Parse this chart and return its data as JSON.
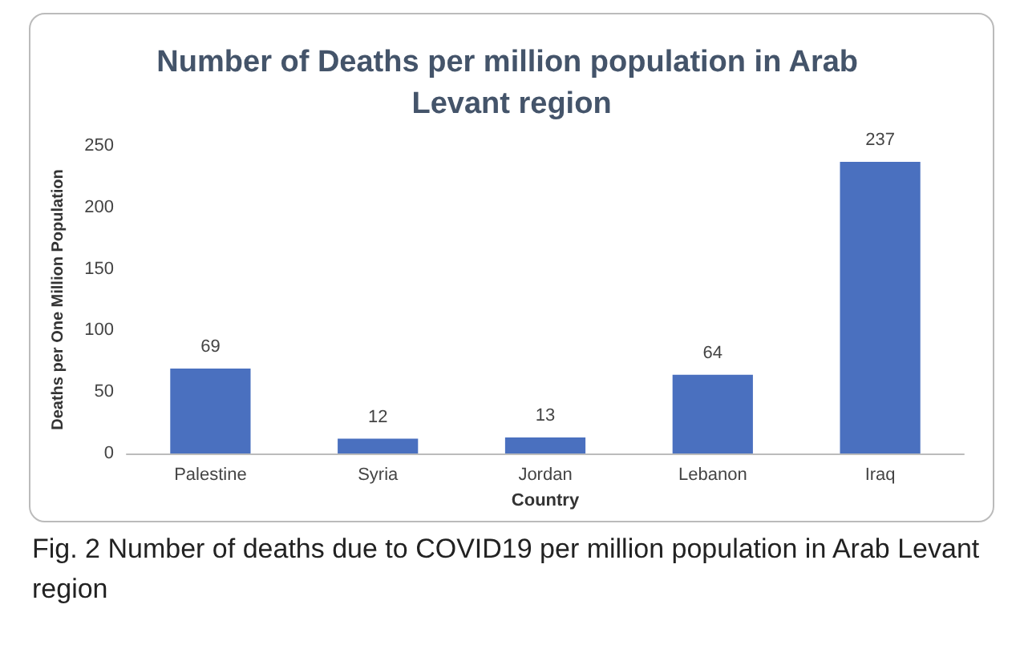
{
  "chart_data": {
    "type": "bar",
    "title": "Number of Deaths per million population in Arab Levant region",
    "xlabel": "Country",
    "ylabel": "Deaths per One Million Population",
    "categories": [
      "Palestine",
      "Syria",
      "Jordan",
      "Lebanon",
      "Iraq"
    ],
    "values": [
      69,
      12,
      13,
      64,
      237
    ],
    "color": "#4a70bf",
    "ylim": [
      0,
      250
    ],
    "yticks": [
      0,
      50,
      100,
      150,
      200,
      250
    ],
    "data_labels": true,
    "annotations": [
      "Fig. 2 Number of deaths due to COVID19 per million population in Arab Levant region"
    ]
  }
}
